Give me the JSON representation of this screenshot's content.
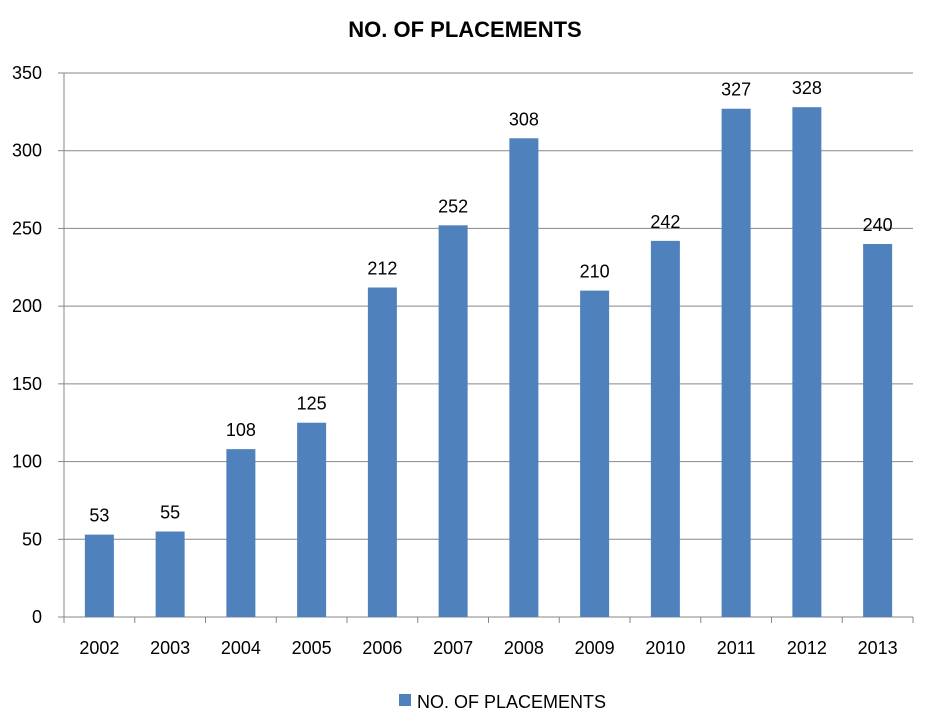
{
  "chart_data": {
    "type": "bar",
    "title": "NO. OF PLACEMENTS",
    "xlabel": "",
    "ylabel": "",
    "categories": [
      "2002",
      "2003",
      "2004",
      "2005",
      "2006",
      "2007",
      "2008",
      "2009",
      "2010",
      "2011",
      "2012",
      "2013"
    ],
    "series": [
      {
        "name": "NO. OF PLACEMENTS",
        "values": [
          53,
          55,
          108,
          125,
          212,
          252,
          308,
          210,
          242,
          327,
          328,
          240
        ]
      }
    ],
    "ylim": [
      0,
      350
    ],
    "yticks": [
      0,
      50,
      100,
      150,
      200,
      250,
      300,
      350
    ],
    "grid": true,
    "legend_position": "bottom",
    "data_labels": true,
    "colors": {
      "bar": "#4f81bd",
      "grid": "#878787",
      "axis": "#878787"
    }
  }
}
